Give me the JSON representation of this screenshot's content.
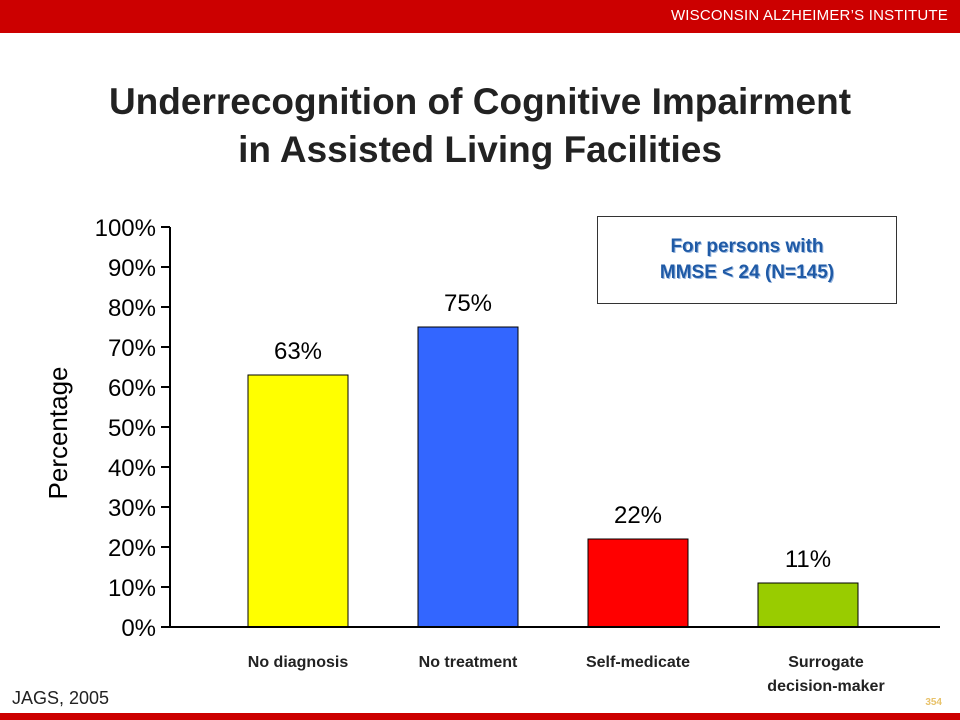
{
  "header": {
    "org_name": "WISCONSIN ALZHEIMER’S INSTITUTE",
    "bar_color": "#cc0000"
  },
  "slide": {
    "title_line1": "Underrecognition of Cognitive Impairment",
    "title_line2": "in Assisted Living Facilities",
    "source": "JAGS, 2005",
    "slide_number": "354"
  },
  "annotation": {
    "line1": "For persons with",
    "line2": "MMSE < 24 (N=145)"
  },
  "chart_data": {
    "type": "bar",
    "categories": [
      "No diagnosis",
      "No treatment",
      "Self-medicate",
      "Surrogate decision-maker"
    ],
    "category_lines": [
      [
        "No diagnosis"
      ],
      [
        "No treatment"
      ],
      [
        "Self-medicate"
      ],
      [
        "Surrogate",
        "decision-maker"
      ]
    ],
    "values": [
      63,
      75,
      22,
      11
    ],
    "data_labels": [
      "63%",
      "75%",
      "22%",
      "11%"
    ],
    "colors": [
      "#ffff00",
      "#3366ff",
      "#ff0000",
      "#99cc00"
    ],
    "ylabel": "Percentage",
    "ylim": [
      0,
      100
    ],
    "yticks": [
      0,
      10,
      20,
      30,
      40,
      50,
      60,
      70,
      80,
      90,
      100
    ],
    "ytick_labels": [
      "0%",
      "10%",
      "20%",
      "30%",
      "40%",
      "50%",
      "60%",
      "70%",
      "80%",
      "90%",
      "100%"
    ],
    "grid": false,
    "legend": "none"
  }
}
